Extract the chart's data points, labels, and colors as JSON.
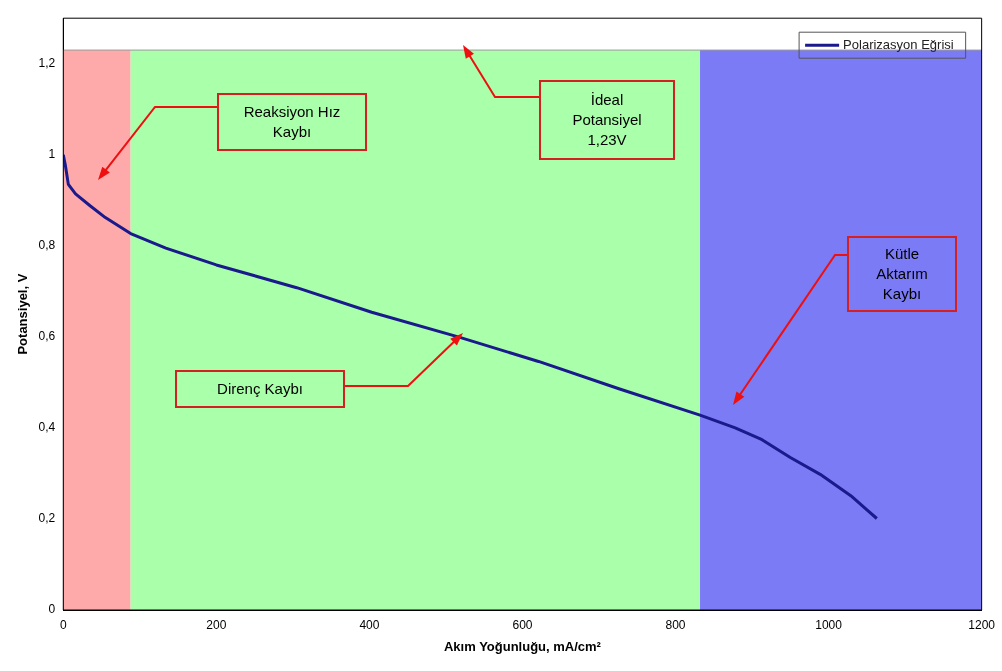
{
  "chart_data": {
    "type": "line",
    "xlabel": "Akım Yoğunluğu, mA/cm²",
    "ylabel": "Potansiyel, V",
    "x": [
      0,
      2.6,
      6.6,
      16,
      35,
      55,
      88,
      134,
      200,
      305,
      403,
      516,
      621,
      726,
      832,
      878,
      913,
      950,
      989,
      1029,
      1063
    ],
    "series": [
      {
        "name": "Polarizasyon Eğrisi",
        "color": "#1a1a8c",
        "values": [
          1.0,
          0.978,
          0.935,
          0.914,
          0.888,
          0.862,
          0.827,
          0.795,
          0.758,
          0.708,
          0.654,
          0.6,
          0.546,
          0.486,
          0.428,
          0.4,
          0.374,
          0.335,
          0.298,
          0.251,
          0.201
        ]
      }
    ],
    "xlim": [
      0,
      1200
    ],
    "xticks": [
      0,
      200,
      400,
      600,
      800,
      1000,
      1200
    ],
    "ylim": [
      0,
      1.3
    ],
    "yticks": [
      0,
      {
        "value": 0.2,
        "label": "0,2"
      },
      {
        "value": 0.4,
        "label": "0,4"
      },
      {
        "value": 0.6,
        "label": "0,6"
      },
      {
        "value": 0.8,
        "label": "0,8"
      },
      1,
      {
        "value": 1.2,
        "label": "1,2"
      }
    ],
    "bands": [
      {
        "axis": "x",
        "from": 0,
        "to": 88,
        "color": "#ffaaaa"
      },
      {
        "axis": "x",
        "from": 88,
        "to": 832,
        "color": "#aaffaa"
      },
      {
        "axis": "x",
        "from": 832,
        "to": 1200,
        "color": "#7b7bf5"
      }
    ],
    "ref_lines": [
      {
        "axis": "y",
        "value": 1.23,
        "color": "#9a9a9a"
      }
    ],
    "annotations": [
      "Reaksiyon Hız Kaybı",
      "İdeal Potansiyel 1,23V",
      "Direnç Kaybı",
      "Kütle Aktarım Kaybı"
    ],
    "legend": "top right",
    "grid": false,
    "marker": "none",
    "line_style": "solid"
  }
}
